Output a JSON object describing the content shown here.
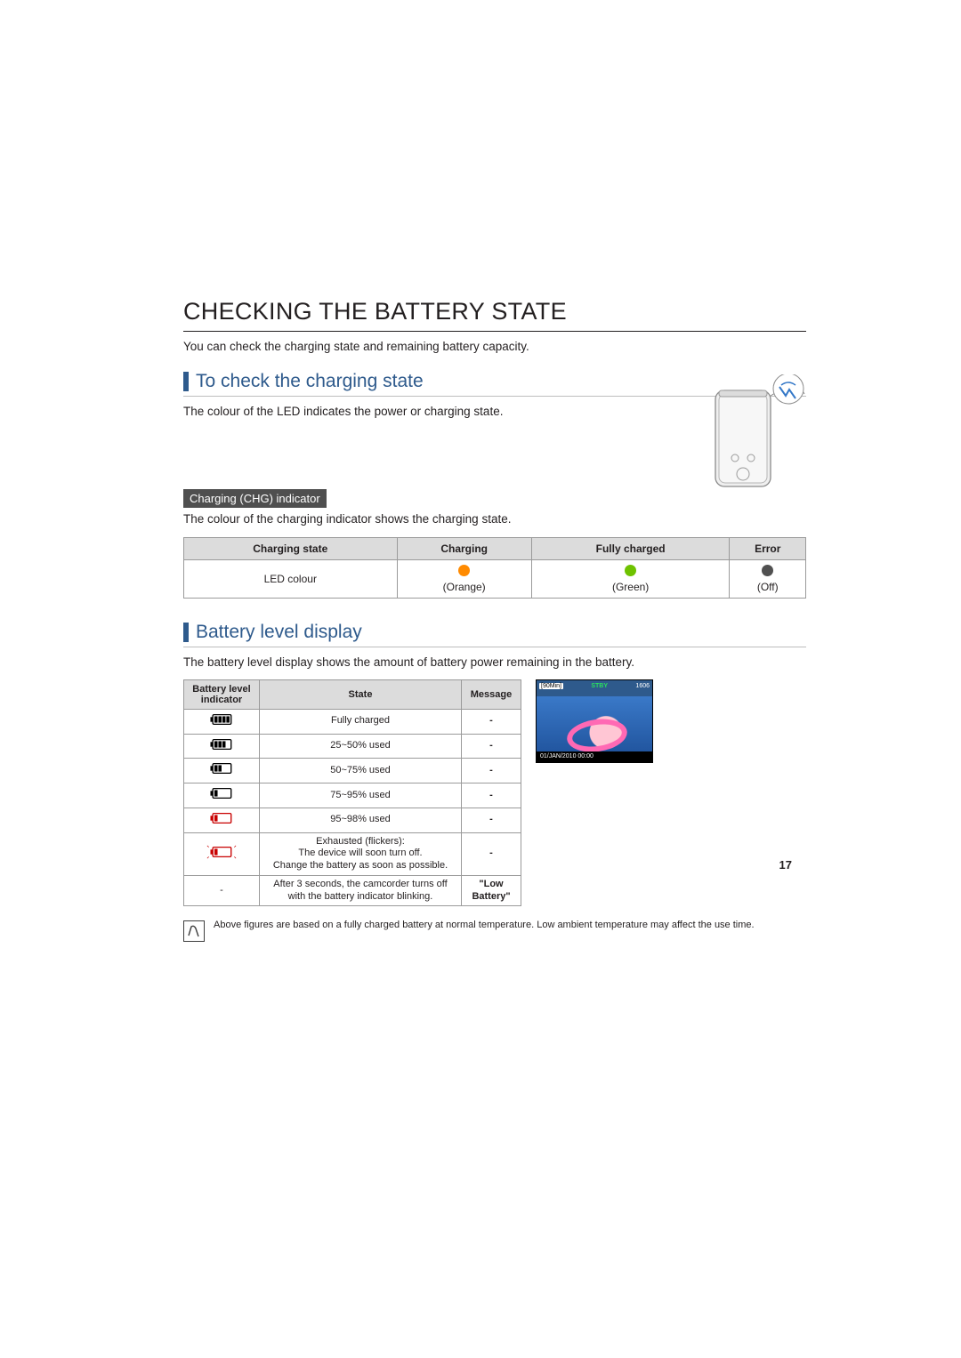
{
  "page_number": "17",
  "title": "CHECKING THE BATTERY STATE",
  "intro": "You can check the charging state and remaining battery capacity.",
  "check_charging": {
    "heading": "To check the charging state",
    "body": "The colour of the LED indicates the power or charging state.",
    "bar_color": "#2e5a8c",
    "chg_tag": "Charging (CHG) indicator",
    "chg_body": "The colour of the charging indicator shows the charging state."
  },
  "charging_table": {
    "headers": [
      "Charging state",
      "Charging",
      "Fully charged",
      "Error"
    ],
    "row_label": "LED colour",
    "led_states": [
      {
        "color": "#ff8a00",
        "label": "(Orange)"
      },
      {
        "color": "#6ec200",
        "label": "(Green)"
      },
      {
        "color": "#505050",
        "label": "(Off)"
      }
    ],
    "header_bg": "#dcdcdc",
    "border": "#9a9a9a"
  },
  "battery_level": {
    "heading": "Battery level display",
    "body": "The battery level display shows the amount of battery power remaining in the battery.",
    "headers": [
      "Battery level indicator",
      "State",
      "Message"
    ],
    "rows": [
      {
        "bars": 4,
        "outline": "#000",
        "fill": "#000",
        "state": "Fully charged",
        "message": "-"
      },
      {
        "bars": 3,
        "outline": "#000",
        "fill": "#000",
        "state": "25~50% used",
        "message": "-"
      },
      {
        "bars": 2,
        "outline": "#000",
        "fill": "#000",
        "state": "50~75% used",
        "message": "-"
      },
      {
        "bars": 1,
        "outline": "#000",
        "fill": "#000",
        "state": "75~95% used",
        "message": "-"
      },
      {
        "bars": 1,
        "outline": "#c80000",
        "fill": "#c80000",
        "state": "95~98% used",
        "message": "-"
      },
      {
        "bars": 1,
        "outline": "#c80000",
        "fill": "#c80000",
        "flicker": true,
        "state": "Exhausted (flickers):\nThe device will soon turn off.\nChange the battery as soon as possible.",
        "message": "-"
      },
      {
        "bars": 0,
        "state": "After 3 seconds, the camcorder turns off with the battery indicator blinking.",
        "message": "\"Low Battery\""
      }
    ]
  },
  "preview": {
    "time": "[90Min]",
    "stby": "STBY",
    "count": "1606",
    "date": "01/JAN/2010 00:00",
    "bg": "#2e5a8c",
    "float": "#ff69b4"
  },
  "note": "Above figures are based on a fully charged battery at normal temperature. Low ambient temperature may affect the use time."
}
